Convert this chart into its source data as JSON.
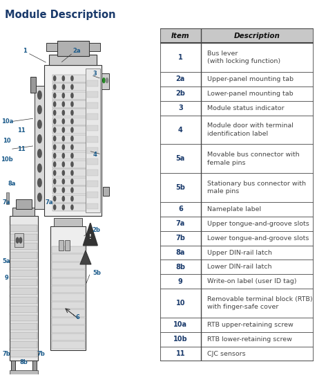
{
  "title": "Module Description",
  "title_color": "#1a3a6b",
  "title_fontsize": 10.5,
  "table_header": [
    "Item",
    "Description"
  ],
  "table_rows": [
    [
      "1",
      "Bus lever\n(with locking function)"
    ],
    [
      "2a",
      "Upper-panel mounting tab"
    ],
    [
      "2b",
      "Lower-panel mounting tab"
    ],
    [
      "3",
      "Module status indicator"
    ],
    [
      "4",
      "Module door with terminal\nidentification label"
    ],
    [
      "5a",
      "Movable bus connector with\nfemale pins"
    ],
    [
      "5b",
      "Stationary bus connector with\nmale pins"
    ],
    [
      "6",
      "Nameplate label"
    ],
    [
      "7a",
      "Upper tongue-and-groove slots"
    ],
    [
      "7b",
      "Lower tongue-and-groove slots"
    ],
    [
      "8a",
      "Upper DIN-rail latch"
    ],
    [
      "8b",
      "Lower DIN-rail latch"
    ],
    [
      "9",
      "Write-on label (user ID tag)"
    ],
    [
      "10",
      "Removable terminal block (RTB)\nwith finger-safe cover"
    ],
    [
      "10a",
      "RTB upper-retaining screw"
    ],
    [
      "10b",
      "RTB lower-retaining screw"
    ],
    [
      "11",
      "CJC sensors"
    ]
  ],
  "header_bg": "#c8c8c8",
  "text_color_item": "#1a3a6b",
  "text_color_desc": "#444444",
  "table_border_color": "#444444",
  "fig_bg": "#ffffff",
  "label_color": "#1a5a8a",
  "label_fontsize": 6.0,
  "diag_label_color": "#1a5a8a"
}
